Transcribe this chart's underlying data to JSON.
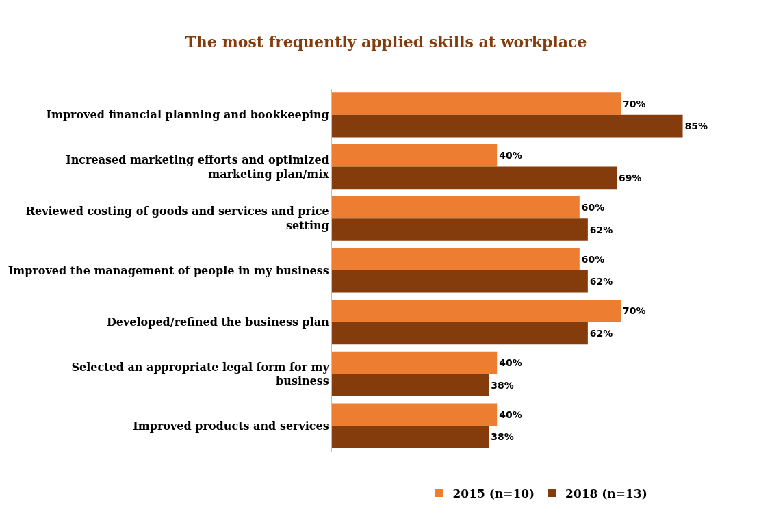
{
  "chart_data": {
    "type": "bar",
    "orientation": "horizontal",
    "title": "The most frequently applied skills at workplace",
    "categories": [
      "Improved financial planning and bookkeeping",
      "Increased marketing efforts and optimized marketing plan/mix",
      "Reviewed costing of goods and services and price setting",
      "Improved the management of people in my business",
      "Developed/refined the business plan",
      "Selected an appropriate legal form for my business",
      "Improved products and services"
    ],
    "series": [
      {
        "name": "2015 (n=10)",
        "color": "#ed7d31",
        "values": [
          70,
          40,
          60,
          60,
          70,
          40,
          40
        ],
        "value_labels": [
          "70%",
          "40%",
          "60%",
          "60%",
          "70%",
          "40%",
          "40%"
        ]
      },
      {
        "name": "2018 (n=13)",
        "color": "#843c0c",
        "values": [
          85,
          69,
          62,
          62,
          62,
          38,
          38
        ],
        "value_labels": [
          "85%",
          "69%",
          "62%",
          "62%",
          "62%",
          "38%",
          "38%"
        ]
      }
    ],
    "legend": "bottom"
  }
}
